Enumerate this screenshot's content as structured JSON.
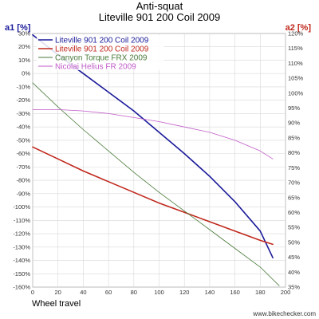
{
  "chart_data": {
    "type": "line",
    "title": "Anti-squat",
    "subtitle": "Liteville 901 200 Coil 2009",
    "xlabel": "Wheel travel",
    "ylabel_left": "a1 [%]",
    "ylabel_right": "a2 [%]",
    "xlim": [
      0,
      200
    ],
    "ylim_left": [
      -160,
      30
    ],
    "ylim_right": [
      35,
      120
    ],
    "x_ticks": [
      0,
      20,
      40,
      60,
      80,
      100,
      120,
      140,
      160,
      180,
      200
    ],
    "y_left_ticks": [
      30,
      20,
      10,
      0,
      -10,
      -20,
      -30,
      -40,
      -50,
      -60,
      -70,
      -80,
      -90,
      -100,
      -110,
      -120,
      -130,
      -140,
      -150,
      -160
    ],
    "y_left_tick_labels": [
      "30%",
      "20%",
      "10%",
      "0%",
      "-10%",
      "-20%",
      "-30%",
      "-40%",
      "-50%",
      "-60%",
      "-70%",
      "-80%",
      "-90%",
      "-100%",
      "-110%",
      "-120%",
      "-130%",
      "-140%",
      "-150%",
      "-160%"
    ],
    "y_right_ticks": [
      120,
      115,
      110,
      105,
      100,
      95,
      90,
      85,
      80,
      75,
      70,
      65,
      60,
      55,
      50,
      45,
      40,
      35
    ],
    "y_right_tick_labels": [
      "120%",
      "115%",
      "110%",
      "105%",
      "100%",
      "95%",
      "90%",
      "85%",
      "80%",
      "75%",
      "70%",
      "65%",
      "60%",
      "55%",
      "50%",
      "45%",
      "40%",
      "35%"
    ],
    "x_tick_labels": [
      "0",
      "20",
      "40",
      "60",
      "80",
      "100",
      "120",
      "140",
      "160",
      "180",
      "200"
    ],
    "grid": true,
    "legend_position": "top-left",
    "series": [
      {
        "name": "Liteville 901 200 Coil 2009",
        "axis": "left",
        "color": "#1a1a9a",
        "x": [
          0,
          20,
          40,
          60,
          80,
          100,
          120,
          140,
          160,
          180,
          190
        ],
        "y": [
          29,
          14,
          0,
          -14,
          -28,
          -44,
          -60,
          -77,
          -96,
          -118,
          -138
        ]
      },
      {
        "name": "Liteville 901 200 Coil 2009",
        "axis": "left",
        "color": "#c0281c",
        "x": [
          0,
          20,
          40,
          60,
          80,
          100,
          120,
          140,
          160,
          180,
          190
        ],
        "y": [
          -55,
          -64,
          -73,
          -81,
          -89,
          -97,
          -104,
          -111,
          -118,
          -125,
          -128
        ]
      },
      {
        "name": "Canyon Torque FRX 2009",
        "axis": "left",
        "color": "#4a7a3a",
        "x": [
          0,
          20,
          40,
          60,
          80,
          100,
          120,
          140,
          160,
          180,
          195
        ],
        "y": [
          -7,
          -25,
          -42,
          -58,
          -74,
          -89,
          -103,
          -117,
          -131,
          -145,
          -159
        ]
      },
      {
        "name": "Nicolai Helius FR 2009",
        "axis": "left",
        "color": "#c05ac8",
        "x": [
          0,
          20,
          40,
          60,
          80,
          100,
          120,
          140,
          160,
          180,
          190
        ],
        "y": [
          -27,
          -27,
          -28,
          -30,
          -33,
          -36,
          -40,
          -44,
          -50,
          -58,
          -64
        ]
      }
    ]
  },
  "footer": {
    "site": "www.bikechecker.com"
  }
}
